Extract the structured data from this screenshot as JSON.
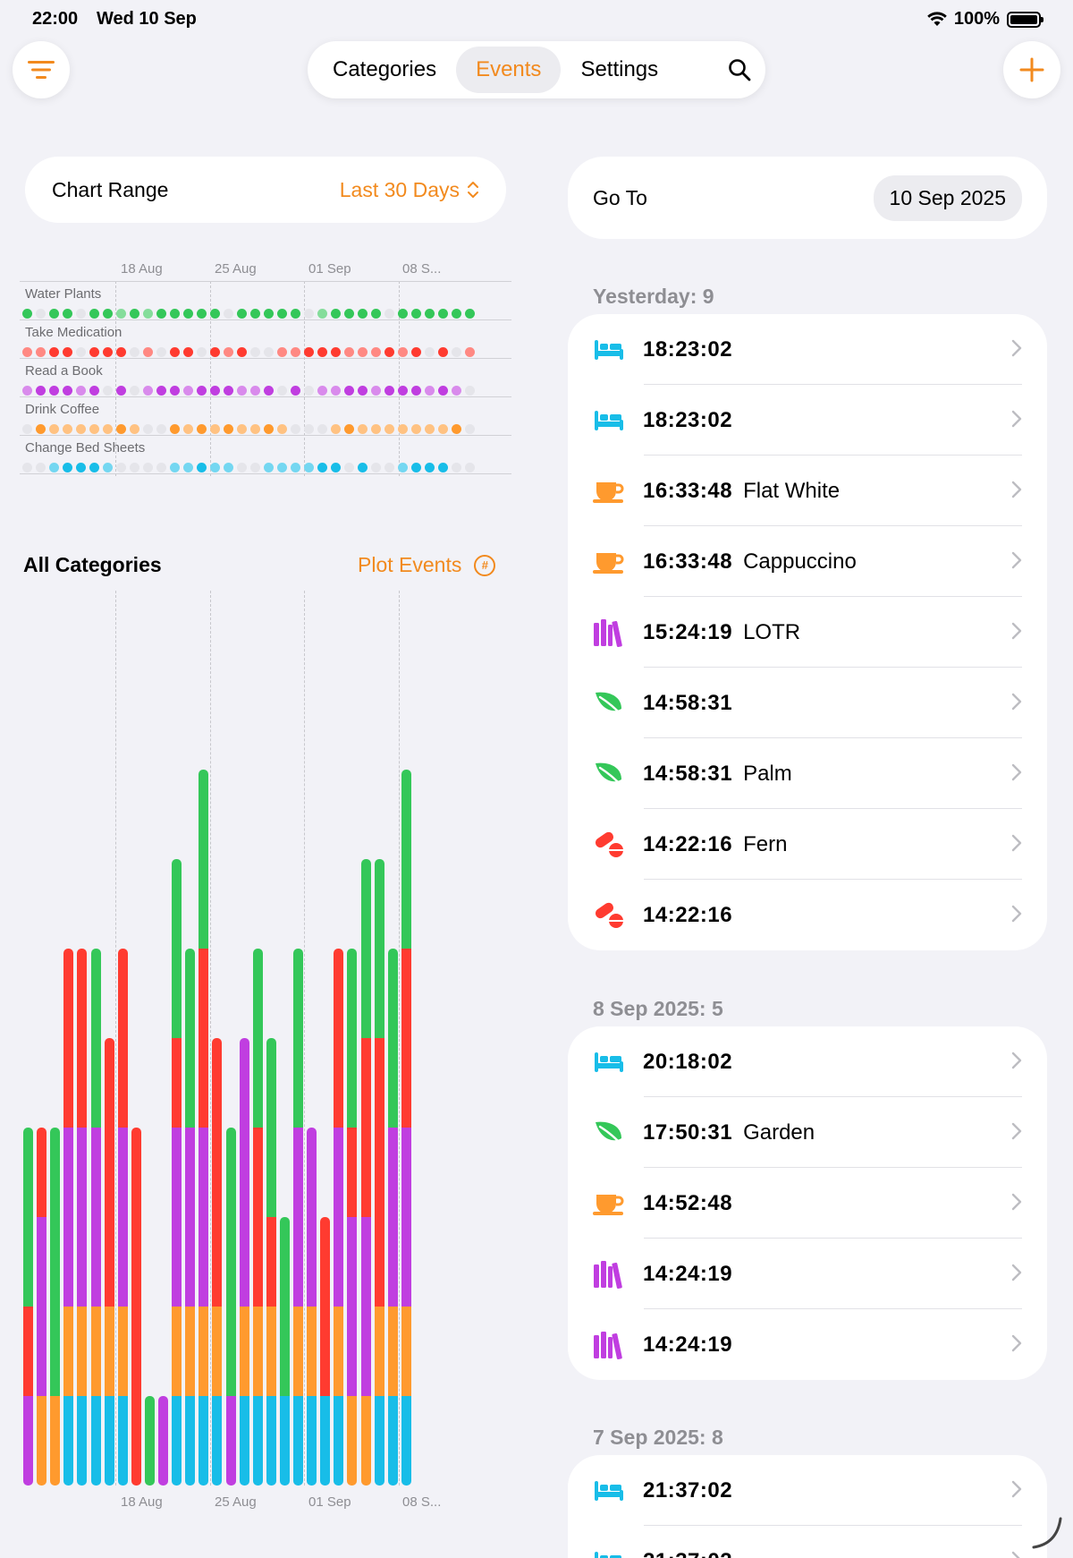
{
  "status": {
    "time": "22:00",
    "date": "Wed 10 Sep",
    "battery": "100%"
  },
  "colors": {
    "accent": "#f28a1e",
    "plants": "#34c759",
    "meds": "#ff3b30",
    "books": "#c03ee0",
    "coffee": "#ff9a2e",
    "sheets": "#18bde8"
  },
  "nav": {
    "tabs": [
      {
        "label": "Categories"
      },
      {
        "label": "Events"
      },
      {
        "label": "Settings"
      }
    ],
    "active_tab": "Events"
  },
  "chart_range": {
    "label": "Chart Range",
    "value": "Last 30 Days"
  },
  "axis_dates": [
    "18 Aug",
    "25 Aug",
    "01 Sep",
    "08 S..."
  ],
  "dot_chart": {
    "rows": [
      {
        "name": "Water Plants",
        "color": "plants",
        "pattern": "2022022121222220222220122220222222"
      },
      {
        "name": "Take Medication",
        "color": "meds",
        "pattern": "1122022201022021200112221112120201"
      },
      {
        "name": "Read a Book",
        "color": "books",
        "pattern": "1222120201221222112020112212221210"
      },
      {
        "name": "Drink Coffee",
        "color": "coffee",
        "pattern": "0211111210021212112100012111111120"
      },
      {
        "name": "Change Bed Sheets",
        "color": "sheets",
        "pattern": "0012221000011211001111220200122200"
      }
    ]
  },
  "bar_chart": {
    "title": "All Categories",
    "plot_events_label": "Plot Events",
    "plot_events_icon": "#",
    "chart_data": {
      "type": "bar",
      "stacked": true,
      "categories_count": 29,
      "series_order": [
        "sheets",
        "coffee",
        "books",
        "meds",
        "plants"
      ],
      "bars": [
        [
          0,
          0,
          1,
          1,
          2
        ],
        [
          0,
          1,
          2,
          1,
          0
        ],
        [
          0,
          1,
          0,
          0,
          3
        ],
        [
          1,
          1,
          2,
          2,
          0
        ],
        [
          1,
          1,
          2,
          2,
          0
        ],
        [
          1,
          1,
          2,
          0,
          2
        ],
        [
          1,
          1,
          0,
          3,
          0
        ],
        [
          1,
          1,
          2,
          2,
          0
        ],
        [
          0,
          0,
          0,
          4,
          0
        ],
        [
          0,
          0,
          0,
          0,
          1
        ],
        [
          0,
          0,
          1,
          0,
          0
        ],
        [
          1,
          1,
          2,
          1,
          2
        ],
        [
          1,
          1,
          2,
          0,
          2
        ],
        [
          1,
          1,
          2,
          2,
          2
        ],
        [
          1,
          1,
          0,
          3,
          0
        ],
        [
          0,
          0,
          1,
          0,
          3
        ],
        [
          1,
          1,
          3,
          0,
          0
        ],
        [
          1,
          1,
          0,
          2,
          2
        ],
        [
          1,
          1,
          0,
          1,
          2
        ],
        [
          1,
          0,
          0,
          0,
          2
        ],
        [
          1,
          1,
          2,
          0,
          2
        ],
        [
          1,
          1,
          2,
          0,
          0
        ],
        [
          1,
          0,
          0,
          2,
          0
        ],
        [
          1,
          1,
          2,
          2,
          0
        ],
        [
          0,
          1,
          2,
          1,
          2
        ],
        [
          0,
          1,
          2,
          2,
          2
        ],
        [
          1,
          1,
          0,
          3,
          2
        ],
        [
          1,
          1,
          2,
          0,
          2
        ],
        [
          1,
          1,
          2,
          2,
          2
        ]
      ]
    }
  },
  "goto": {
    "label": "Go To",
    "date": "10 Sep 2025"
  },
  "groups": [
    {
      "header": "Yesterday: 9",
      "events": [
        {
          "icon": "bed-icon",
          "color": "sheets",
          "time": "18:23:02",
          "note": ""
        },
        {
          "icon": "bed-icon",
          "color": "sheets",
          "time": "18:23:02",
          "note": ""
        },
        {
          "icon": "coffee-cup-icon",
          "color": "coffee",
          "time": "16:33:48",
          "note": "Flat White"
        },
        {
          "icon": "coffee-cup-icon",
          "color": "coffee",
          "time": "16:33:48",
          "note": "Cappuccino"
        },
        {
          "icon": "books-icon",
          "color": "books",
          "time": "15:24:19",
          "note": "LOTR"
        },
        {
          "icon": "leaf-icon",
          "color": "plants",
          "time": "14:58:31",
          "note": ""
        },
        {
          "icon": "leaf-icon",
          "color": "plants",
          "time": "14:58:31",
          "note": "Palm"
        },
        {
          "icon": "pills-icon",
          "color": "meds",
          "time": "14:22:16",
          "note": "Fern"
        },
        {
          "icon": "pills-icon",
          "color": "meds",
          "time": "14:22:16",
          "note": ""
        }
      ]
    },
    {
      "header": "8 Sep 2025: 5",
      "events": [
        {
          "icon": "bed-icon",
          "color": "sheets",
          "time": "20:18:02",
          "note": ""
        },
        {
          "icon": "leaf-icon",
          "color": "plants",
          "time": "17:50:31",
          "note": "Garden"
        },
        {
          "icon": "coffee-cup-icon",
          "color": "coffee",
          "time": "14:52:48",
          "note": ""
        },
        {
          "icon": "books-icon",
          "color": "books",
          "time": "14:24:19",
          "note": ""
        },
        {
          "icon": "books-icon",
          "color": "books",
          "time": "14:24:19",
          "note": ""
        }
      ]
    },
    {
      "header": "7 Sep 2025: 8",
      "events": [
        {
          "icon": "bed-icon",
          "color": "sheets",
          "time": "21:37:02",
          "note": ""
        },
        {
          "icon": "bed-icon",
          "color": "sheets",
          "time": "21:37:02",
          "note": ""
        }
      ]
    }
  ]
}
